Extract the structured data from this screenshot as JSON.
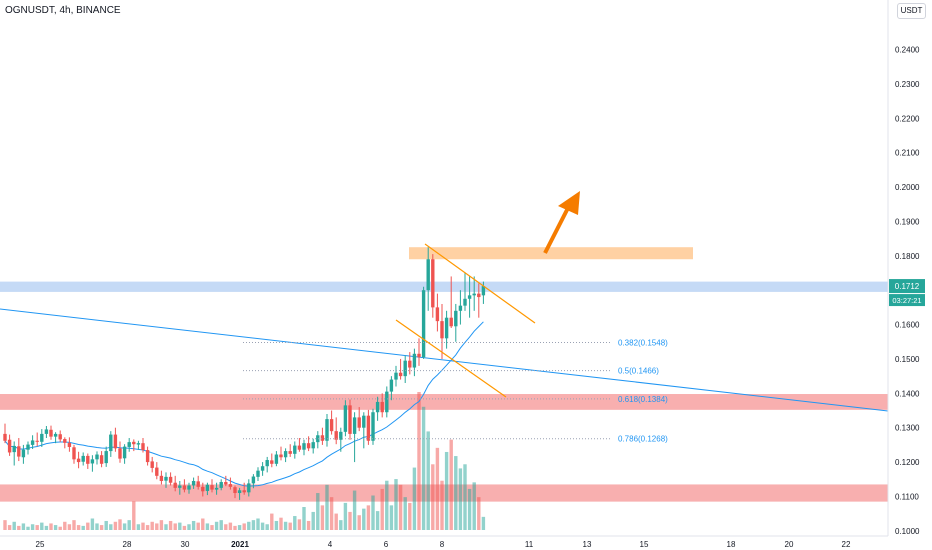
{
  "header": {
    "symbol_line": "OGNUSDT, 4h, BINANCE",
    "currency_button": "USDT"
  },
  "colors": {
    "up": "#26a69a",
    "down": "#ef5350",
    "ma_line": "#2196f3",
    "trend_line": "#2196f3",
    "channel": "#ff9800",
    "arrow": "#f57c00",
    "resistance_zone": "#ffcc99",
    "current_zone": "#bbd3f5",
    "support_zone": "#f7a1a1",
    "price_label_bg": "#26a69a"
  },
  "price_tag": {
    "price": "0.1712",
    "countdown": "03:27:21"
  },
  "chart_data": {
    "type": "candlestick",
    "x_ticks": [
      "25",
      "28",
      "30",
      "2021",
      "4",
      "6",
      "8",
      "11",
      "13",
      "15",
      "18",
      "20",
      "22"
    ],
    "y_ticks": [
      "0.2400",
      "0.2300",
      "0.2200",
      "0.2100",
      "0.2000",
      "0.1900",
      "0.1800",
      "0.1700",
      "0.1600",
      "0.1500",
      "0.1400",
      "0.1300",
      "0.1200",
      "0.1100",
      "0.1000"
    ],
    "ylim": [
      0.0985,
      0.2515
    ],
    "current_price": 0.1712,
    "fib_levels": [
      {
        "label": "0.382(0.1548)",
        "price": 0.1548
      },
      {
        "label": "0.5(0.1466)",
        "price": 0.1466
      },
      {
        "label": "0.618(0.1384)",
        "price": 0.1384
      },
      {
        "label": "0.786(0.1268)",
        "price": 0.1268
      }
    ],
    "zones": [
      {
        "name": "resistance",
        "low": 0.179,
        "high": 0.1825
      },
      {
        "name": "current",
        "low": 0.1695,
        "high": 0.1725
      },
      {
        "name": "support-upper",
        "low": 0.1352,
        "high": 0.1398
      },
      {
        "name": "support-lower",
        "low": 0.1085,
        "high": 0.1135
      }
    ],
    "candles": [
      [
        0.1282,
        0.1312,
        0.1255,
        0.1262
      ],
      [
        0.1265,
        0.128,
        0.1218,
        0.1228
      ],
      [
        0.1229,
        0.126,
        0.119,
        0.1247
      ],
      [
        0.1246,
        0.127,
        0.1203,
        0.1216
      ],
      [
        0.1214,
        0.125,
        0.1195,
        0.1236
      ],
      [
        0.1236,
        0.126,
        0.1222,
        0.1251
      ],
      [
        0.125,
        0.1278,
        0.1238,
        0.1263
      ],
      [
        0.1262,
        0.1286,
        0.1246,
        0.1259
      ],
      [
        0.1259,
        0.1296,
        0.1244,
        0.1282
      ],
      [
        0.1282,
        0.1305,
        0.127,
        0.1295
      ],
      [
        0.1294,
        0.1306,
        0.1265,
        0.1274
      ],
      [
        0.1274,
        0.1287,
        0.1255,
        0.1282
      ],
      [
        0.1281,
        0.1292,
        0.1258,
        0.1266
      ],
      [
        0.1267,
        0.1272,
        0.124,
        0.1256
      ],
      [
        0.1256,
        0.1272,
        0.123,
        0.1244
      ],
      [
        0.1243,
        0.125,
        0.1195,
        0.1208
      ],
      [
        0.121,
        0.123,
        0.1182,
        0.12
      ],
      [
        0.1201,
        0.1228,
        0.119,
        0.1218
      ],
      [
        0.1218,
        0.1225,
        0.118,
        0.1195
      ],
      [
        0.1196,
        0.122,
        0.1172,
        0.1208
      ],
      [
        0.1208,
        0.1231,
        0.1193,
        0.1222
      ],
      [
        0.122,
        0.1232,
        0.1185,
        0.1195
      ],
      [
        0.1197,
        0.1245,
        0.1186,
        0.1232
      ],
      [
        0.1232,
        0.129,
        0.1215,
        0.128
      ],
      [
        0.128,
        0.13,
        0.123,
        0.124
      ],
      [
        0.124,
        0.126,
        0.1198,
        0.121
      ],
      [
        0.1211,
        0.1252,
        0.1195,
        0.1245
      ],
      [
        0.1244,
        0.127,
        0.123,
        0.1258
      ],
      [
        0.1259,
        0.1266,
        0.1232,
        0.1252
      ],
      [
        0.1251,
        0.1262,
        0.1236,
        0.1255
      ],
      [
        0.1255,
        0.127,
        0.1228,
        0.1235
      ],
      [
        0.1235,
        0.1245,
        0.119,
        0.12
      ],
      [
        0.1202,
        0.1215,
        0.117,
        0.1183
      ],
      [
        0.1184,
        0.12,
        0.115,
        0.116
      ],
      [
        0.116,
        0.1175,
        0.1135,
        0.1145
      ],
      [
        0.1146,
        0.117,
        0.1125,
        0.1157
      ],
      [
        0.1157,
        0.117,
        0.1132,
        0.114
      ],
      [
        0.114,
        0.116,
        0.1115,
        0.1125
      ],
      [
        0.1125,
        0.1145,
        0.1105,
        0.1132
      ],
      [
        0.1132,
        0.115,
        0.1112,
        0.112
      ],
      [
        0.112,
        0.114,
        0.1108,
        0.1132
      ],
      [
        0.1132,
        0.1155,
        0.1122,
        0.1145
      ],
      [
        0.1144,
        0.116,
        0.112,
        0.1128
      ],
      [
        0.1128,
        0.114,
        0.11,
        0.1115
      ],
      [
        0.1116,
        0.114,
        0.1104,
        0.1134
      ],
      [
        0.1133,
        0.115,
        0.1112,
        0.112
      ],
      [
        0.112,
        0.114,
        0.1105,
        0.1125
      ],
      [
        0.1125,
        0.115,
        0.1118,
        0.1142
      ],
      [
        0.1142,
        0.116,
        0.113,
        0.1135
      ],
      [
        0.1136,
        0.1155,
        0.112,
        0.1128
      ],
      [
        0.1127,
        0.1132,
        0.1095,
        0.111
      ],
      [
        0.111,
        0.1125,
        0.109,
        0.1118
      ],
      [
        0.1118,
        0.114,
        0.1105,
        0.1112
      ],
      [
        0.1112,
        0.115,
        0.11,
        0.1138
      ],
      [
        0.1138,
        0.1165,
        0.1124,
        0.1158
      ],
      [
        0.1157,
        0.1185,
        0.1145,
        0.1175
      ],
      [
        0.1175,
        0.12,
        0.116,
        0.1188
      ],
      [
        0.1188,
        0.1215,
        0.117,
        0.1206
      ],
      [
        0.1205,
        0.1225,
        0.1185,
        0.1195
      ],
      [
        0.1195,
        0.1232,
        0.1188,
        0.1222
      ],
      [
        0.1222,
        0.1245,
        0.1205,
        0.1214
      ],
      [
        0.1214,
        0.124,
        0.12,
        0.1232
      ],
      [
        0.1232,
        0.1252,
        0.1215,
        0.1224
      ],
      [
        0.1224,
        0.126,
        0.121,
        0.1248
      ],
      [
        0.1248,
        0.127,
        0.123,
        0.1236
      ],
      [
        0.1236,
        0.1265,
        0.122,
        0.1255
      ],
      [
        0.1255,
        0.1275,
        0.1232,
        0.124
      ],
      [
        0.124,
        0.1268,
        0.1225,
        0.1258
      ],
      [
        0.1258,
        0.129,
        0.124,
        0.1278
      ],
      [
        0.1278,
        0.13,
        0.125,
        0.1262
      ],
      [
        0.1262,
        0.134,
        0.1245,
        0.1325
      ],
      [
        0.1325,
        0.135,
        0.128,
        0.129
      ],
      [
        0.129,
        0.133,
        0.1252,
        0.1265
      ],
      [
        0.1265,
        0.13,
        0.123,
        0.1288
      ],
      [
        0.1288,
        0.138,
        0.1275,
        0.1365
      ],
      [
        0.1365,
        0.1382,
        0.1265,
        0.1282
      ],
      [
        0.1282,
        0.1345,
        0.12,
        0.133
      ],
      [
        0.133,
        0.136,
        0.129,
        0.13
      ],
      [
        0.13,
        0.1345,
        0.124,
        0.1335
      ],
      [
        0.1335,
        0.1352,
        0.125,
        0.1262
      ],
      [
        0.1262,
        0.1355,
        0.125,
        0.1345
      ],
      [
        0.1345,
        0.139,
        0.132,
        0.1375
      ],
      [
        0.1375,
        0.14,
        0.133,
        0.1345
      ],
      [
        0.1345,
        0.142,
        0.133,
        0.1405
      ],
      [
        0.1405,
        0.145,
        0.138,
        0.144
      ],
      [
        0.144,
        0.148,
        0.142,
        0.146
      ],
      [
        0.146,
        0.15,
        0.144,
        0.145
      ],
      [
        0.145,
        0.151,
        0.143,
        0.1495
      ],
      [
        0.1495,
        0.152,
        0.1455,
        0.1475
      ],
      [
        0.1475,
        0.153,
        0.145,
        0.1515
      ],
      [
        0.1515,
        0.156,
        0.148,
        0.1505
      ],
      [
        0.1505,
        0.171,
        0.15,
        0.17
      ],
      [
        0.17,
        0.1825,
        0.164,
        0.179
      ],
      [
        0.179,
        0.1805,
        0.162,
        0.165
      ],
      [
        0.165,
        0.169,
        0.158,
        0.161
      ],
      [
        0.161,
        0.166,
        0.15,
        0.156
      ],
      [
        0.156,
        0.164,
        0.153,
        0.162
      ],
      [
        0.162,
        0.174,
        0.159,
        0.1595
      ],
      [
        0.1595,
        0.166,
        0.155,
        0.164
      ],
      [
        0.164,
        0.17,
        0.16,
        0.1655
      ],
      [
        0.1655,
        0.175,
        0.164,
        0.1675
      ],
      [
        0.1675,
        0.174,
        0.162,
        0.1685
      ],
      [
        0.1685,
        0.174,
        0.164,
        0.169
      ],
      [
        0.169,
        0.172,
        0.162,
        0.168
      ],
      [
        0.1685,
        0.1725,
        0.166,
        0.1712
      ]
    ],
    "volumes": [
      12,
      6,
      10,
      5,
      8,
      4,
      7,
      6,
      9,
      5,
      8,
      6,
      4,
      10,
      7,
      12,
      6,
      5,
      9,
      14,
      8,
      6,
      11,
      7,
      10,
      13,
      8,
      12,
      35,
      7,
      9,
      6,
      10,
      8,
      12,
      7,
      11,
      8,
      9,
      5,
      7,
      11,
      9,
      14,
      8,
      6,
      10,
      12,
      7,
      9,
      5,
      6,
      8,
      10,
      12,
      14,
      9,
      7,
      20,
      11,
      15,
      10,
      9,
      17,
      13,
      28,
      11,
      22,
      45,
      30,
      55,
      40,
      20,
      12,
      33,
      22,
      48,
      18,
      26,
      30,
      42,
      23,
      50,
      60,
      30,
      62,
      55,
      40,
      33,
      76,
      168,
      150,
      120,
      80,
      100,
      60,
      95,
      110,
      90,
      75,
      80,
      50,
      58,
      40,
      16
    ]
  },
  "annotations": {
    "arrow_name": "up-arrow"
  }
}
